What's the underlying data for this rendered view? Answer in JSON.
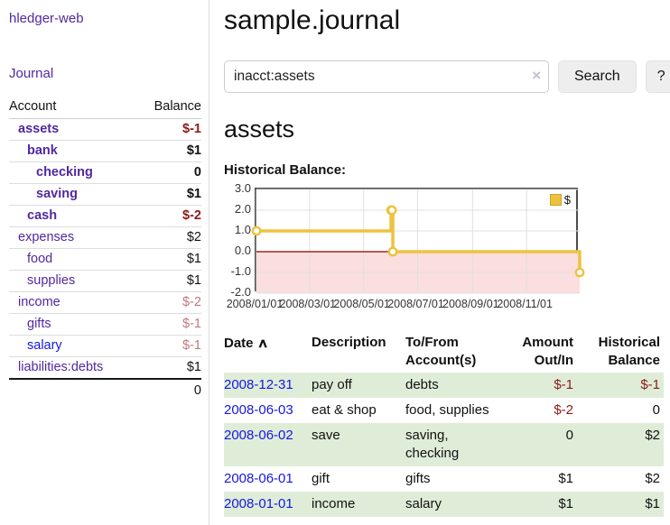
{
  "sidebar": {
    "brand": "hledger-web",
    "nav_journal": "Journal",
    "headers": {
      "account": "Account",
      "balance": "Balance"
    },
    "accounts": [
      {
        "name": "assets",
        "depth": 1,
        "bold": true,
        "color": "purple",
        "balance": "$-1"
      },
      {
        "name": "bank",
        "depth": 2,
        "bold": true,
        "color": "purple",
        "balance": "$1"
      },
      {
        "name": "checking",
        "depth": 3,
        "bold": true,
        "color": "purple",
        "balance": "0"
      },
      {
        "name": "saving",
        "depth": 3,
        "bold": true,
        "color": "purple",
        "balance": "$1"
      },
      {
        "name": "cash",
        "depth": 2,
        "bold": true,
        "color": "purple",
        "balance": "$-2"
      },
      {
        "name": "expenses",
        "depth": 1,
        "bold": false,
        "color": "purple",
        "balance": "$2"
      },
      {
        "name": "food",
        "depth": 2,
        "bold": false,
        "color": "purple",
        "balance": "$1"
      },
      {
        "name": "supplies",
        "depth": 2,
        "bold": false,
        "color": "purple",
        "balance": "$1"
      },
      {
        "name": "income",
        "depth": 1,
        "bold": false,
        "color": "purple",
        "balance": "$-2"
      },
      {
        "name": "gifts",
        "depth": 2,
        "bold": false,
        "color": "purple",
        "balance": "$-1"
      },
      {
        "name": "salary",
        "depth": 2,
        "bold": false,
        "color": "blue",
        "balance": "$-1"
      },
      {
        "name": "liabilities:debts",
        "depth": 1,
        "bold": false,
        "color": "purple",
        "balance": "$1"
      }
    ],
    "total": "0"
  },
  "header": {
    "title": "sample.journal"
  },
  "search": {
    "value": "inacct:assets",
    "clear_icon": "×",
    "button_label": "Search",
    "help_label": "?"
  },
  "main": {
    "account_heading": "assets",
    "chart_label": "Historical Balance:"
  },
  "chart_data": {
    "type": "line",
    "title": "Historical Balance:",
    "x_ticks": [
      "2008/01/01",
      "2008/03/01",
      "2008/05/01",
      "2008/07/01",
      "2008/09/01",
      "2008/11/01"
    ],
    "y_ticks": [
      "3.0",
      "2.0",
      "1.0",
      "0.0",
      "-1.0",
      "-2.0"
    ],
    "xlim": [
      "2008-01-01",
      "2008-12-31"
    ],
    "ylim": [
      -2,
      3
    ],
    "grid": true,
    "legend": {
      "position": "top-right",
      "label": "$"
    },
    "series": [
      {
        "name": "$",
        "color": "#edc240",
        "step": true,
        "points": [
          [
            "2008-01-01",
            1
          ],
          [
            "2008-06-01",
            2
          ],
          [
            "2008-06-02",
            2
          ],
          [
            "2008-06-03",
            0
          ],
          [
            "2008-12-31",
            -1
          ]
        ]
      }
    ],
    "negative_region_color": "#fbdede",
    "zero_line_color": "#8b0000",
    "grid_color": "#e0e0e0"
  },
  "register": {
    "headers": {
      "date": "Date",
      "sort_icon": "∧",
      "description": "Description",
      "accounts": "To/From Account(s)",
      "amount": "Amount Out/In",
      "balance": "Historical Balance"
    },
    "rows": [
      {
        "date": "2008-12-31",
        "description": "pay off",
        "accounts": "debts",
        "amount": "$-1",
        "balance": "$-1"
      },
      {
        "date": "2008-06-03",
        "description": "eat & shop",
        "accounts": "food, supplies",
        "amount": "$-2",
        "balance": "0"
      },
      {
        "date": "2008-06-02",
        "description": "save",
        "accounts": "saving, checking",
        "amount": "0",
        "balance": "$2"
      },
      {
        "date": "2008-06-01",
        "description": "gift",
        "accounts": "gifts",
        "amount": "$1",
        "balance": "$2"
      },
      {
        "date": "2008-01-01",
        "description": "income",
        "accounts": "salary",
        "amount": "$1",
        "balance": "$1"
      }
    ]
  }
}
